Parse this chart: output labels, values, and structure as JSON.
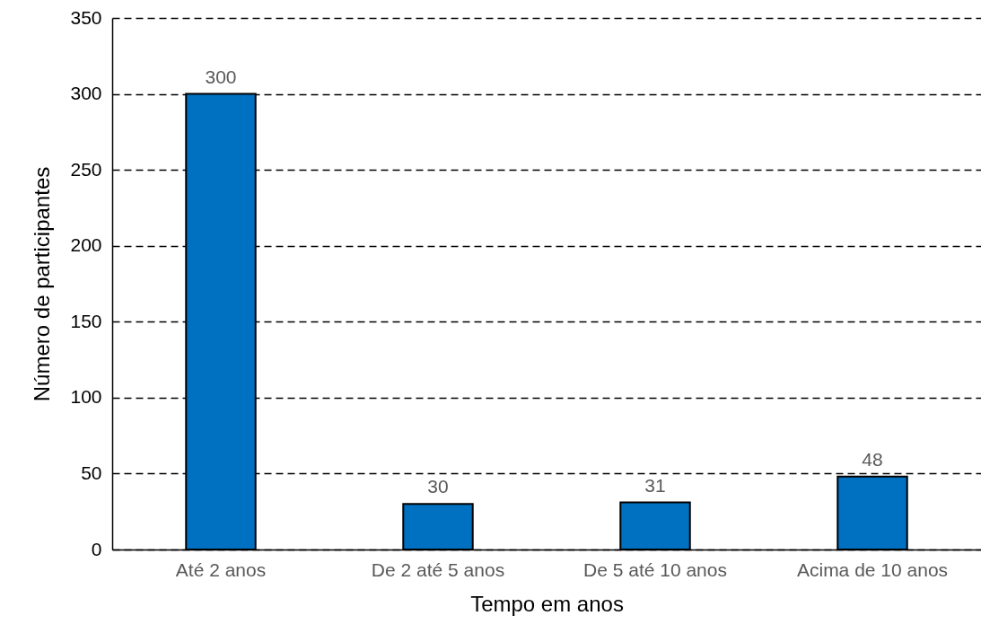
{
  "chart_data": {
    "type": "bar",
    "xlabel": "Tempo em anos",
    "ylabel": "Número de participantes",
    "categories": [
      "Até 2 anos",
      "De 2 até 5 anos",
      "De 5 até 10 anos",
      "Acima de 10 anos"
    ],
    "values": [
      300,
      30,
      31,
      48
    ],
    "color": "#0070c0",
    "ylim": [
      0,
      350
    ],
    "yticks": [
      0,
      50,
      100,
      150,
      200,
      250,
      300,
      350
    ],
    "grid": "y",
    "data_labels": true
  }
}
